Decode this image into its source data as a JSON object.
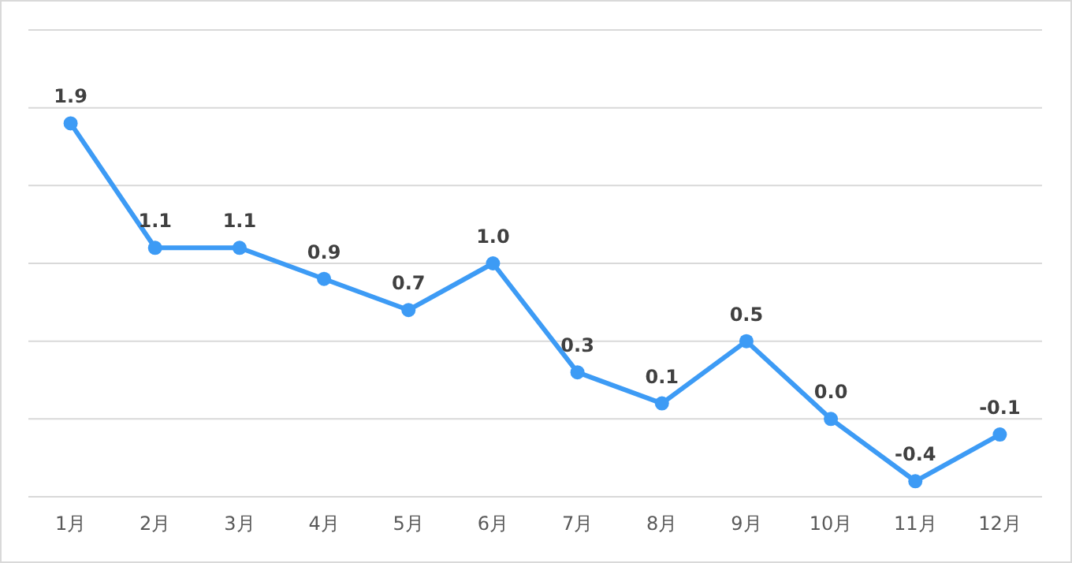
{
  "chart_data": {
    "type": "line",
    "categories": [
      "1月",
      "2月",
      "3月",
      "4月",
      "5月",
      "6月",
      "7月",
      "8月",
      "9月",
      "10月",
      "11月",
      "12月"
    ],
    "series": [
      {
        "color": "#3d9bf5",
        "values": [
          1.9,
          1.1,
          1.1,
          0.9,
          0.7,
          1.0,
          0.3,
          0.1,
          0.5,
          0.0,
          -0.4,
          -0.1
        ],
        "value_labels": [
          "1.9",
          "1.1",
          "1.1",
          "0.9",
          "0.7",
          "1.0",
          "0.3",
          "0.1",
          "0.5",
          "0.0",
          "-0.4",
          "-0.1"
        ]
      }
    ],
    "ylim": [
      -0.5,
      2.5
    ],
    "yticks": [
      {
        "value": -0.5,
        "label": null
      },
      {
        "value": 0,
        "label": null
      },
      {
        "value": 0.5,
        "label": null
      },
      {
        "value": 1,
        "label": null
      },
      {
        "value": 1.5,
        "label": null
      },
      {
        "value": 2,
        "label": null
      },
      {
        "value": 2.5,
        "label": null
      }
    ],
    "tick_labels": "x",
    "grid": "y",
    "marker": "circle",
    "line_style": "solid"
  }
}
